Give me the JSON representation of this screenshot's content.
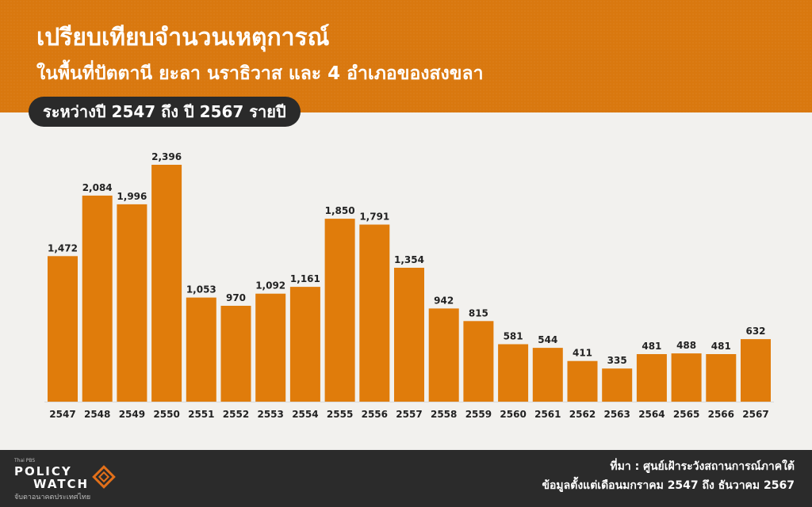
{
  "header": {
    "title": "เปรียบเทียบจำนวนเหตุการณ์",
    "subtitle": "ในพื้นที่ปัตตานี ยะลา นราธิวาส และ 4 อำเภอของสงขลา",
    "period": "ระหว่างปี 2547 ถึง ปี 2567 รายปี"
  },
  "colors": {
    "header_bg": "#d9780f",
    "bar": "#e07c0b",
    "pill_bg": "#2a2a2a",
    "footer_bg": "#2b2b2b",
    "logo_accent": "#e2701a"
  },
  "chart_data": {
    "type": "bar",
    "categories": [
      "2547",
      "2548",
      "2549",
      "2550",
      "2551",
      "2552",
      "2553",
      "2554",
      "2555",
      "2556",
      "2557",
      "2558",
      "2559",
      "2560",
      "2561",
      "2562",
      "2563",
      "2564",
      "2565",
      "2566",
      "2567"
    ],
    "values": [
      1472,
      2084,
      1996,
      2396,
      1053,
      970,
      1092,
      1161,
      1850,
      1791,
      1354,
      942,
      815,
      581,
      544,
      411,
      335,
      481,
      488,
      481,
      632
    ],
    "value_labels": [
      "1,472",
      "2,084",
      "1,996",
      "2,396",
      "1,053",
      "970",
      "1,092",
      "1,161",
      "1,850",
      "1,791",
      "1,354",
      "942",
      "815",
      "581",
      "544",
      "411",
      "335",
      "481",
      "488",
      "481",
      "632"
    ],
    "title": "",
    "xlabel": "",
    "ylabel": "",
    "ylim": [
      0,
      2396
    ],
    "grid": false,
    "legend": "none"
  },
  "footer": {
    "logo_top": "Thai PBS",
    "logo_line1": "POLICY",
    "logo_line2": "WATCH",
    "logo_sub": "จับตาอนาคตประเทศไทย",
    "source": "ที่มา : ศูนย์เฝ้าระวังสถานการณ์ภาคใต้",
    "note": "ข้อมูลตั้งแต่เดือนมกราคม 2547 ถึง ธันวาคม 2567"
  }
}
